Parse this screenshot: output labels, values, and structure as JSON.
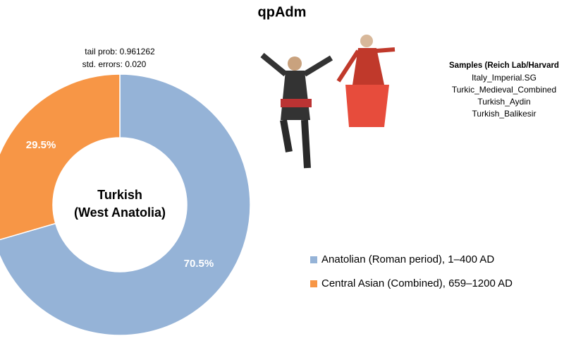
{
  "chart_data": {
    "type": "donut",
    "title": "qpAdm",
    "annotations": [
      "tail prob: 0.961262",
      "std. errors: 0.020"
    ],
    "center_label": [
      "Turkish",
      "(West Anatolia)"
    ],
    "categories": [
      "Anatolian (Roman period), 1–400 AD",
      "Central Asian (Combined), 659–1200 AD"
    ],
    "values": [
      70.5,
      29.5
    ],
    "value_labels": [
      "70.5%",
      "29.5%"
    ],
    "colors": [
      "#95b3d7",
      "#f79646"
    ],
    "samples": {
      "title": "Samples (Reich Lab/Harvard",
      "items": [
        "Italy_Imperial.SG",
        "Turkic_Medieval_Combined",
        "Turkish_Aydin",
        "Turkish_Balikesir"
      ]
    }
  }
}
